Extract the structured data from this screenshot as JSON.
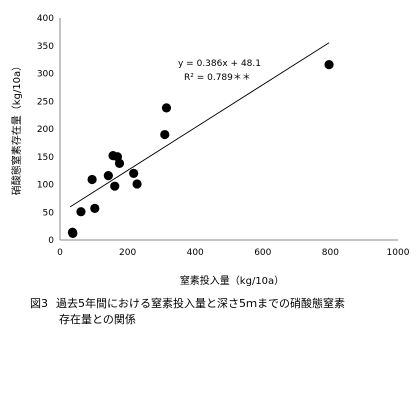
{
  "chart_data": {
    "type": "scatter",
    "xlabel": "窒素投入量（kg/10a）",
    "ylabel": "硝酸態窒素存在量（kg/10a）",
    "xlim": [
      0,
      1000
    ],
    "ylim": [
      0,
      400
    ],
    "x_ticks": [
      "0",
      "200",
      "400",
      "600",
      "800",
      "1000"
    ],
    "y_ticks": [
      "0",
      "50",
      "100",
      "150",
      "200",
      "250",
      "300",
      "350",
      "400"
    ],
    "grid": false,
    "series": [
      {
        "points": [
          {
            "x": 37,
            "y": 14
          },
          {
            "x": 38,
            "y": 12
          },
          {
            "x": 62,
            "y": 51
          },
          {
            "x": 95,
            "y": 109
          },
          {
            "x": 103,
            "y": 57
          },
          {
            "x": 143,
            "y": 116
          },
          {
            "x": 157,
            "y": 152
          },
          {
            "x": 162,
            "y": 97
          },
          {
            "x": 170,
            "y": 150
          },
          {
            "x": 176,
            "y": 138
          },
          {
            "x": 218,
            "y": 120
          },
          {
            "x": 228,
            "y": 101
          },
          {
            "x": 310,
            "y": 190
          },
          {
            "x": 315,
            "y": 238
          },
          {
            "x": 796,
            "y": 316
          }
        ]
      }
    ],
    "trendline": {
      "slope": 0.386,
      "intercept": 48.1,
      "x_range": [
        30,
        796
      ],
      "equation": "y = 0.386x + 48.1",
      "r2_label": "R² = 0.789＊＊"
    }
  },
  "caption": {
    "figure_label": "図3",
    "line1": "過去5年間における窒素投入量と深さ5ｍまでの硝酸態窒素",
    "line2": "存在量との関係"
  }
}
